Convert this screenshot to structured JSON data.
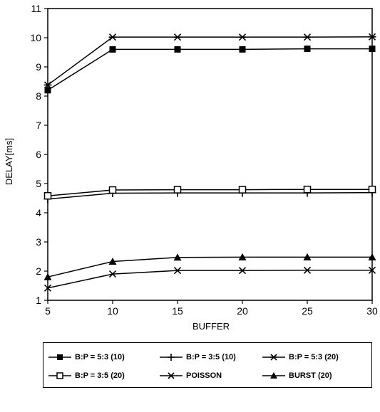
{
  "chart_data": {
    "type": "line",
    "title": "",
    "xlabel": "BUFFER",
    "ylabel": "DELAY[ms]",
    "x": [
      5,
      10,
      15,
      20,
      25,
      30
    ],
    "xlim": [
      5,
      30
    ],
    "ylim": [
      1,
      11
    ],
    "xticks": [
      "5",
      "10",
      "15",
      "20",
      "25",
      "30"
    ],
    "yticks": [
      "1",
      "2",
      "3",
      "4",
      "5",
      "6",
      "7",
      "8",
      "9",
      "10",
      "11"
    ],
    "grid": false,
    "legend_position": "bottom",
    "series": [
      {
        "name": "B:P = 5:3 (10)",
        "marker": "filled-square",
        "values": [
          8.2,
          9.6,
          9.6,
          9.6,
          9.62,
          9.62
        ]
      },
      {
        "name": "B:P = 3:5 (10)",
        "marker": "plus",
        "values": [
          4.47,
          4.67,
          4.68,
          4.68,
          4.68,
          4.69
        ]
      },
      {
        "name": "B:P = 5:3 (20)",
        "marker": "asterisk",
        "values": [
          8.38,
          10.02,
          10.02,
          10.02,
          10.02,
          10.03
        ]
      },
      {
        "name": "B:P = 3:5 (20)",
        "marker": "open-square",
        "values": [
          4.58,
          4.78,
          4.79,
          4.79,
          4.8,
          4.8
        ]
      },
      {
        "name": "POISSON",
        "marker": "x",
        "values": [
          1.42,
          1.9,
          2.02,
          2.02,
          2.03,
          2.03
        ]
      },
      {
        "name": "BURST (20)",
        "marker": "filled-triangle",
        "values": [
          1.8,
          2.33,
          2.47,
          2.48,
          2.48,
          2.48
        ]
      }
    ]
  }
}
